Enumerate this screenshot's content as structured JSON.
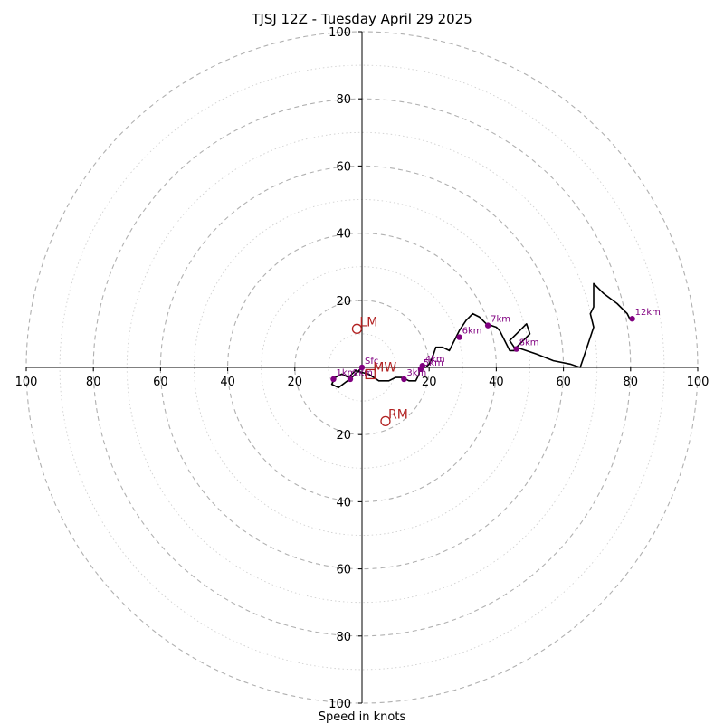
{
  "chart_data": {
    "type": "hodograph",
    "title": "TJSJ 12Z - Tuesday April 29 2025",
    "xlabel": "Speed in knots",
    "units": "knots",
    "range": 100,
    "ring_step_major": 20,
    "ring_step_minor": 10,
    "x_ticks": [
      {
        "value": -100,
        "label": "100"
      },
      {
        "value": -80,
        "label": "80"
      },
      {
        "value": -60,
        "label": "60"
      },
      {
        "value": -40,
        "label": "40"
      },
      {
        "value": -20,
        "label": "20"
      },
      {
        "value": 20,
        "label": "20"
      },
      {
        "value": 40,
        "label": "40"
      },
      {
        "value": 60,
        "label": "60"
      },
      {
        "value": 80,
        "label": "80"
      },
      {
        "value": 100,
        "label": "100"
      }
    ],
    "y_ticks": [
      {
        "value": 100,
        "label": "100"
      },
      {
        "value": 80,
        "label": "80"
      },
      {
        "value": 60,
        "label": "60"
      },
      {
        "value": 40,
        "label": "40"
      },
      {
        "value": 20,
        "label": "20"
      },
      {
        "value": -20,
        "label": "20"
      },
      {
        "value": -40,
        "label": "40"
      },
      {
        "value": -60,
        "label": "60"
      },
      {
        "value": -80,
        "label": "80"
      },
      {
        "value": -100,
        "label": "100"
      }
    ],
    "trace": [
      [
        0,
        0
      ],
      [
        -3,
        -3
      ],
      [
        -7,
        -6
      ],
      [
        -9,
        -5
      ],
      [
        -8,
        -3
      ],
      [
        -6,
        -2
      ],
      [
        -4,
        -3
      ],
      [
        -2,
        -1
      ],
      [
        2,
        -2
      ],
      [
        5,
        -4
      ],
      [
        8,
        -4
      ],
      [
        10,
        -3
      ],
      [
        12,
        -3
      ],
      [
        14,
        -4
      ],
      [
        16,
        -4
      ],
      [
        17,
        -2
      ],
      [
        17,
        0
      ],
      [
        19,
        0
      ],
      [
        20,
        1
      ],
      [
        21,
        3
      ],
      [
        22,
        6
      ],
      [
        24,
        6
      ],
      [
        26,
        5
      ],
      [
        27,
        7
      ],
      [
        28,
        9
      ],
      [
        29,
        11
      ],
      [
        31,
        14
      ],
      [
        33,
        16
      ],
      [
        35,
        15
      ],
      [
        37,
        13
      ],
      [
        40,
        12
      ],
      [
        41,
        11
      ],
      [
        43,
        7
      ],
      [
        44,
        5
      ],
      [
        46,
        5
      ],
      [
        44,
        8
      ],
      [
        46,
        10
      ],
      [
        49,
        13
      ],
      [
        50,
        10
      ],
      [
        46,
        6
      ],
      [
        52,
        4
      ],
      [
        57,
        2
      ],
      [
        62,
        1
      ],
      [
        65,
        0
      ],
      [
        66,
        3
      ],
      [
        69,
        12
      ],
      [
        68,
        16
      ],
      [
        69,
        18
      ],
      [
        69,
        23
      ],
      [
        69,
        25
      ],
      [
        72,
        22
      ],
      [
        76,
        19
      ],
      [
        79,
        16
      ],
      [
        80,
        14
      ]
    ],
    "height_markers": [
      {
        "label": "Sfc",
        "u": 0,
        "v": 0
      },
      {
        "label": "1km",
        "u": -8.5,
        "v": -3.5
      },
      {
        "label": "2km",
        "u": -3.5,
        "v": -3.5
      },
      {
        "label": "3km",
        "u": 12.5,
        "v": -3.5
      },
      {
        "label": "4km",
        "u": 18,
        "v": 0.5
      },
      {
        "label": "5km",
        "u": 17.5,
        "v": -0.5
      },
      {
        "label": "6km",
        "u": 29,
        "v": 9
      },
      {
        "label": "7km",
        "u": 37.5,
        "v": 12.5
      },
      {
        "label": "8km",
        "u": 46,
        "v": 5.5
      },
      {
        "label": "12km",
        "u": 80.5,
        "v": 14.5
      }
    ],
    "motion_markers": [
      {
        "label": "LM",
        "u": -1.5,
        "v": 11.5,
        "shape": "circle"
      },
      {
        "label": "RM",
        "u": 7,
        "v": -16,
        "shape": "circle"
      },
      {
        "label": "MW",
        "u": 2.5,
        "v": -2,
        "shape": "square"
      }
    ],
    "colors": {
      "trace": "#000000",
      "height_marker": "#800080",
      "motion_marker": "#b22222",
      "ring": "#b0b0b0",
      "axis": "#000000"
    },
    "grid": true
  }
}
